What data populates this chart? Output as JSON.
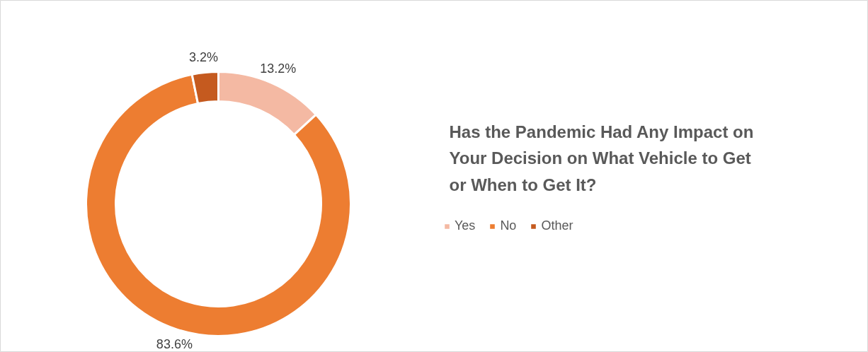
{
  "chart_data": {
    "type": "donut",
    "title": "Has the Pandemic Had Any Impact on Your Decision on What Vehicle to Get or When to Get It?",
    "categories": [
      "Yes",
      "No",
      "Other"
    ],
    "values": [
      13.2,
      83.6,
      3.2
    ],
    "colors": [
      "#f4b9a3",
      "#ed7d31",
      "#c55a1f"
    ],
    "value_labels": [
      "13.2%",
      "83.6%",
      "3.2%"
    ],
    "legend": "right"
  }
}
